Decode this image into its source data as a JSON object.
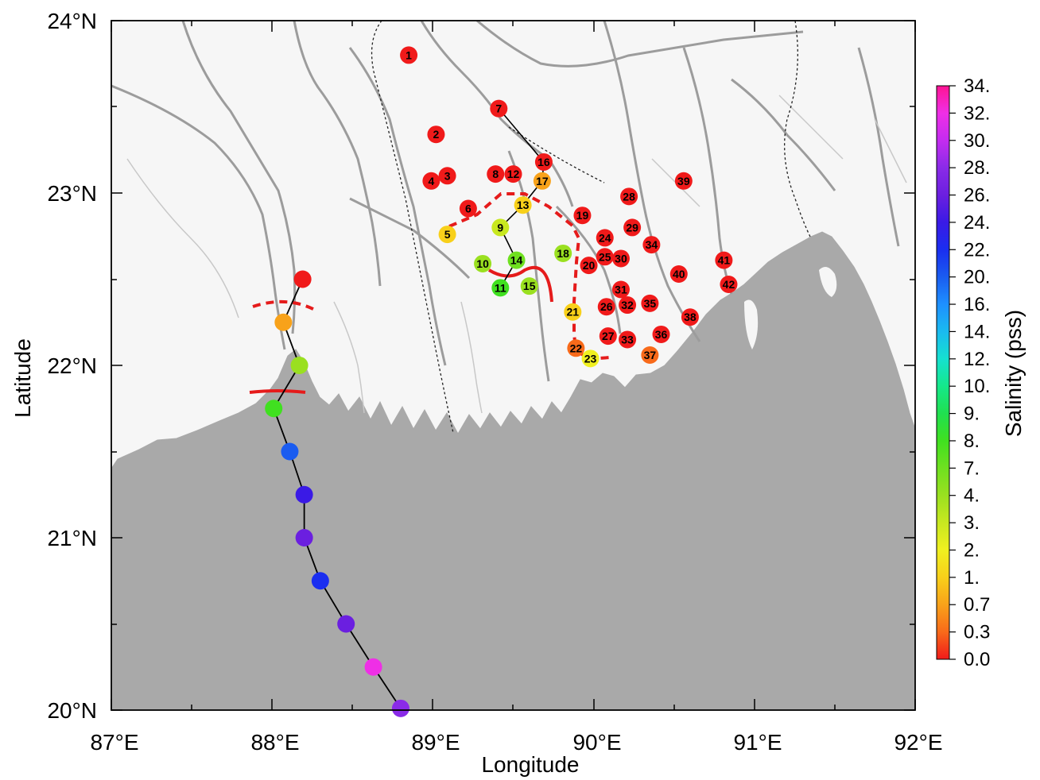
{
  "map": {
    "x_axis_title": "Longitude",
    "y_axis_title": "Latitude",
    "x_ticks": [
      "87°E",
      "88°E",
      "89°E",
      "90°E",
      "91°E",
      "92°E"
    ],
    "y_ticks": [
      "24°N",
      "23°N",
      "22°N",
      "21°N",
      "20°N"
    ],
    "lon_range": [
      87,
      92
    ],
    "lat_range": [
      20,
      24
    ],
    "land_color": "#f6f6f6",
    "sea_color": "#a9a9a9",
    "river_color": "#9c9c9c"
  },
  "colorbar": {
    "title": "Salinity (pss)",
    "labels": [
      "34.",
      "32.",
      "30.",
      "28.",
      "26.",
      "24.",
      "22.",
      "20.",
      "16.",
      "14.",
      "12.",
      "10.",
      "9.",
      "8.",
      "7.",
      "4.",
      "3.",
      "2.",
      "1.",
      "0.7",
      "0.3",
      "0.0"
    ],
    "colors": [
      "#ff1493",
      "#ef2fe6",
      "#c42cf0",
      "#8a2be8",
      "#6b1fe0",
      "#3a1ae6",
      "#1a2ef0",
      "#1a5cf0",
      "#1e90ff",
      "#1abaf0",
      "#15e0d0",
      "#15e88a",
      "#20e050",
      "#40e020",
      "#6fe020",
      "#9ae020",
      "#c8e820",
      "#f0f020",
      "#f8d01a",
      "#f8a21a",
      "#f86a1a",
      "#f01a1a"
    ]
  },
  "chart_data": {
    "type": "scatter",
    "x_label": "Longitude",
    "y_label": "Latitude",
    "xlim": [
      87,
      92
    ],
    "ylim": [
      20,
      24
    ],
    "color_scale": "Salinity (pss)",
    "numbered_stations": [
      {
        "id": "1",
        "lon": 88.85,
        "lat": 23.8,
        "salinity_class": "0.0"
      },
      {
        "id": "2",
        "lon": 89.02,
        "lat": 23.34,
        "salinity_class": "0.0"
      },
      {
        "id": "3",
        "lon": 89.09,
        "lat": 23.1,
        "salinity_class": "0.0"
      },
      {
        "id": "4",
        "lon": 88.99,
        "lat": 23.07,
        "salinity_class": "0.0"
      },
      {
        "id": "5",
        "lon": 89.09,
        "lat": 22.76,
        "salinity_class": "1."
      },
      {
        "id": "6",
        "lon": 89.22,
        "lat": 22.91,
        "salinity_class": "0.0"
      },
      {
        "id": "7",
        "lon": 89.41,
        "lat": 23.49,
        "salinity_class": "0.0"
      },
      {
        "id": "8",
        "lon": 89.39,
        "lat": 23.11,
        "salinity_class": "0.0"
      },
      {
        "id": "9",
        "lon": 89.42,
        "lat": 22.8,
        "salinity_class": "3."
      },
      {
        "id": "10",
        "lon": 89.31,
        "lat": 22.59,
        "salinity_class": "4."
      },
      {
        "id": "11",
        "lon": 89.42,
        "lat": 22.45,
        "salinity_class": "8."
      },
      {
        "id": "12",
        "lon": 89.5,
        "lat": 23.11,
        "salinity_class": "0.0"
      },
      {
        "id": "13",
        "lon": 89.56,
        "lat": 22.93,
        "salinity_class": "1."
      },
      {
        "id": "14",
        "lon": 89.52,
        "lat": 22.61,
        "salinity_class": "7."
      },
      {
        "id": "15",
        "lon": 89.6,
        "lat": 22.46,
        "salinity_class": "4."
      },
      {
        "id": "16",
        "lon": 89.69,
        "lat": 23.18,
        "salinity_class": "0.0"
      },
      {
        "id": "17",
        "lon": 89.68,
        "lat": 23.07,
        "salinity_class": "0.7"
      },
      {
        "id": "18",
        "lon": 89.81,
        "lat": 22.65,
        "salinity_class": "4."
      },
      {
        "id": "19",
        "lon": 89.93,
        "lat": 22.87,
        "salinity_class": "0.0"
      },
      {
        "id": "20",
        "lon": 89.97,
        "lat": 22.58,
        "salinity_class": "0.0"
      },
      {
        "id": "21",
        "lon": 89.87,
        "lat": 22.31,
        "salinity_class": "1."
      },
      {
        "id": "22",
        "lon": 89.89,
        "lat": 22.1,
        "salinity_class": "0.3"
      },
      {
        "id": "23",
        "lon": 89.98,
        "lat": 22.04,
        "salinity_class": "2."
      },
      {
        "id": "24",
        "lon": 90.07,
        "lat": 22.74,
        "salinity_class": "0.0"
      },
      {
        "id": "25",
        "lon": 90.07,
        "lat": 22.63,
        "salinity_class": "0.0"
      },
      {
        "id": "26",
        "lon": 90.08,
        "lat": 22.34,
        "salinity_class": "0.0"
      },
      {
        "id": "27",
        "lon": 90.09,
        "lat": 22.17,
        "salinity_class": "0.0"
      },
      {
        "id": "28",
        "lon": 90.22,
        "lat": 22.98,
        "salinity_class": "0.0"
      },
      {
        "id": "29",
        "lon": 90.24,
        "lat": 22.8,
        "salinity_class": "0.0"
      },
      {
        "id": "30",
        "lon": 90.17,
        "lat": 22.62,
        "salinity_class": "0.0"
      },
      {
        "id": "31",
        "lon": 90.17,
        "lat": 22.44,
        "salinity_class": "0.0"
      },
      {
        "id": "32",
        "lon": 90.21,
        "lat": 22.35,
        "salinity_class": "0.0"
      },
      {
        "id": "33",
        "lon": 90.21,
        "lat": 22.15,
        "salinity_class": "0.0"
      },
      {
        "id": "34",
        "lon": 90.36,
        "lat": 22.7,
        "salinity_class": "0.0"
      },
      {
        "id": "35",
        "lon": 90.35,
        "lat": 22.36,
        "salinity_class": "0.0"
      },
      {
        "id": "36",
        "lon": 90.42,
        "lat": 22.18,
        "salinity_class": "0.0"
      },
      {
        "id": "37",
        "lon": 90.35,
        "lat": 22.06,
        "salinity_class": "0.3"
      },
      {
        "id": "38",
        "lon": 90.6,
        "lat": 22.28,
        "salinity_class": "0.0"
      },
      {
        "id": "39",
        "lon": 90.56,
        "lat": 23.07,
        "salinity_class": "0.0"
      },
      {
        "id": "40",
        "lon": 90.53,
        "lat": 22.53,
        "salinity_class": "0.0"
      },
      {
        "id": "41",
        "lon": 90.81,
        "lat": 22.61,
        "salinity_class": "0.0"
      },
      {
        "id": "42",
        "lon": 90.84,
        "lat": 22.47,
        "salinity_class": "0.0"
      }
    ],
    "transect_stations": [
      {
        "lon": 88.19,
        "lat": 22.5,
        "salinity_class": "0.0"
      },
      {
        "lon": 88.07,
        "lat": 22.25,
        "salinity_class": "0.7"
      },
      {
        "lon": 88.17,
        "lat": 22.0,
        "salinity_class": "4."
      },
      {
        "lon": 88.01,
        "lat": 21.75,
        "salinity_class": "8."
      },
      {
        "lon": 88.11,
        "lat": 21.5,
        "salinity_class": "20."
      },
      {
        "lon": 88.2,
        "lat": 21.25,
        "salinity_class": "24."
      },
      {
        "lon": 88.2,
        "lat": 21.0,
        "salinity_class": "26."
      },
      {
        "lon": 88.3,
        "lat": 20.75,
        "salinity_class": "22."
      },
      {
        "lon": 88.46,
        "lat": 20.5,
        "salinity_class": "26."
      },
      {
        "lon": 88.63,
        "lat": 20.25,
        "salinity_class": "32."
      },
      {
        "lon": 88.8,
        "lat": 20.01,
        "salinity_class": "28."
      }
    ],
    "connected_lines": [
      [
        "7",
        "16",
        "17",
        "13",
        "9",
        "14",
        "11"
      ]
    ]
  }
}
